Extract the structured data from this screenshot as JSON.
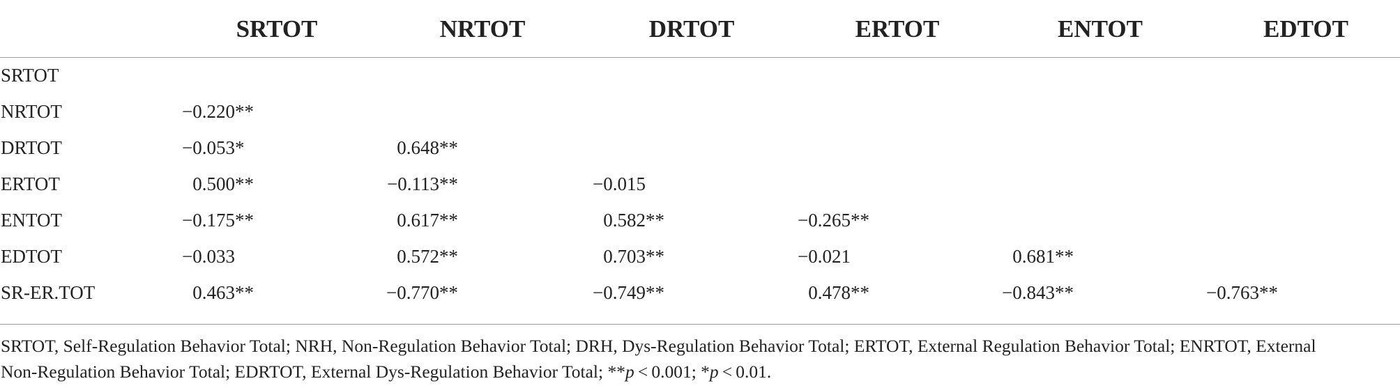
{
  "table": {
    "columns": [
      "SRTOT",
      "NRTOT",
      "DRTOT",
      "ERTOT",
      "ENTOT",
      "EDTOT"
    ],
    "rows": [
      {
        "label": "SRTOT",
        "cells": []
      },
      {
        "label": "NRTOT",
        "cells": [
          {
            "num": "−0.220",
            "sig": "**"
          }
        ]
      },
      {
        "label": "DRTOT",
        "cells": [
          {
            "num": "−0.053",
            "sig": "*"
          },
          {
            "num": "0.648",
            "sig": "**"
          }
        ]
      },
      {
        "label": "ERTOT",
        "cells": [
          {
            "num": "0.500",
            "sig": "**"
          },
          {
            "num": "−0.113",
            "sig": "**"
          },
          {
            "num": "−0.015",
            "sig": ""
          }
        ]
      },
      {
        "label": "ENTOT",
        "cells": [
          {
            "num": "−0.175",
            "sig": "**"
          },
          {
            "num": "0.617",
            "sig": "**"
          },
          {
            "num": "0.582",
            "sig": "**"
          },
          {
            "num": "−0.265",
            "sig": "**"
          }
        ]
      },
      {
        "label": "EDTOT",
        "cells": [
          {
            "num": "−0.033",
            "sig": ""
          },
          {
            "num": "0.572",
            "sig": "**"
          },
          {
            "num": "0.703",
            "sig": "**"
          },
          {
            "num": "−0.021",
            "sig": ""
          },
          {
            "num": "0.681",
            "sig": "**"
          }
        ]
      },
      {
        "label": "SR-ER.TOT",
        "cells": [
          {
            "num": "0.463",
            "sig": "**"
          },
          {
            "num": "−0.770",
            "sig": "**"
          },
          {
            "num": "−0.749",
            "sig": "**"
          },
          {
            "num": "0.478",
            "sig": "**"
          },
          {
            "num": "−0.843",
            "sig": "**"
          },
          {
            "num": "−0.763",
            "sig": "**"
          }
        ]
      }
    ]
  },
  "footnote": {
    "line1": "SRTOT, Self-Regulation Behavior Total; NRH, Non-Regulation Behavior Total; DRH, Dys-Regulation Behavior Total; ERTOT, External Regulation Behavior Total; ENRTOT, External",
    "line2_text": "Non-Regulation Behavior Total; EDRTOT, External Dys-Regulation Behavior Total; **",
    "p_symbol": "p",
    "threshold1": " < 0.001; *",
    "threshold2": " < 0.01."
  }
}
